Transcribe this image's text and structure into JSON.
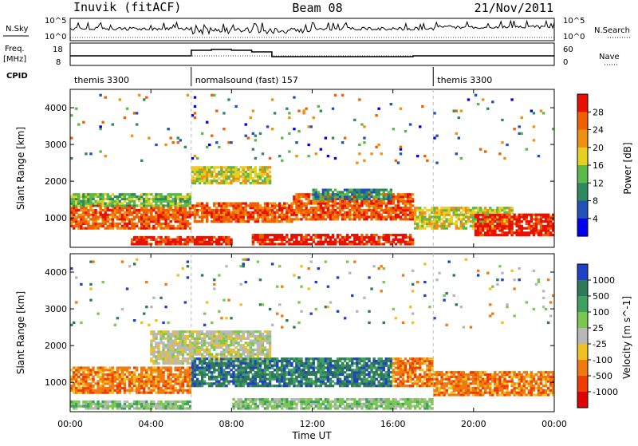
{
  "header": {
    "station": "Inuvik (fitACF)",
    "beam": "Beam 08",
    "date": "21/Nov/2011"
  },
  "left_labels": {
    "nsky": "N.Sky",
    "freq_line1": "Freq.",
    "freq_line2": "[MHz]",
    "cpid": "CPID"
  },
  "right_labels": {
    "nsearch": "N.Search",
    "nave": "Nave"
  },
  "nsky_panel": {
    "left_ticks": [
      "10^5",
      "10^0"
    ],
    "right_ticks": [
      "10^5",
      "10^0"
    ]
  },
  "freq_panel": {
    "left_ticks": [
      "18",
      "8"
    ],
    "right_ticks": [
      "60",
      "0"
    ]
  },
  "cpid_segments": [
    {
      "label": "themis 3300",
      "start_hour": 0,
      "end_hour": 6
    },
    {
      "label": "normalsound (fast) 157",
      "start_hour": 6,
      "end_hour": 18
    },
    {
      "label": "themis 3300",
      "start_hour": 18,
      "end_hour": 24
    }
  ],
  "chart_data": [
    {
      "type": "heatmap",
      "name": "power",
      "xlabel": "",
      "ylabel": "Slant Range [km]",
      "xlim": [
        0,
        24
      ],
      "ylim": [
        200,
        4500
      ],
      "yticks": [
        "1000",
        "2000",
        "3000",
        "4000"
      ],
      "colorbar_label": "Power [dB]",
      "colorbar_ticks": [
        "4",
        "8",
        "12",
        "16",
        "20",
        "24",
        "28"
      ],
      "colors": [
        "#0000f0",
        "#2050b8",
        "#2e8a5e",
        "#5bb84a",
        "#e8d020",
        "#f09010",
        "#f06000",
        "#e81000"
      ],
      "bands": [
        {
          "x0": 0,
          "x1": 6,
          "y0": 700,
          "y1": 1350,
          "level": 6
        },
        {
          "x0": 0,
          "x1": 6,
          "y0": 1300,
          "y1": 1650,
          "level": 3
        },
        {
          "x0": 3,
          "x1": 8,
          "y0": 250,
          "y1": 500,
          "level": 7
        },
        {
          "x0": 6,
          "x1": 11,
          "y0": 900,
          "y1": 1450,
          "level": 6
        },
        {
          "x0": 6,
          "x1": 10,
          "y0": 1950,
          "y1": 2400,
          "level": 4
        },
        {
          "x0": 11,
          "x1": 17,
          "y0": 950,
          "y1": 1700,
          "level": 6
        },
        {
          "x0": 12,
          "x1": 16,
          "y0": 1500,
          "y1": 1800,
          "level": 2
        },
        {
          "x0": 9,
          "x1": 17,
          "y0": 250,
          "y1": 550,
          "level": 7
        },
        {
          "x0": 17,
          "x1": 22,
          "y0": 700,
          "y1": 1300,
          "level": 4
        },
        {
          "x0": 20,
          "x1": 24,
          "y0": 500,
          "y1": 1100,
          "level": 7
        }
      ],
      "sparse_bands": [
        {
          "x0": 0,
          "x1": 24,
          "y0": 2500,
          "y1": 4400,
          "levels": [
            0,
            1,
            2,
            3,
            5,
            6
          ]
        }
      ]
    },
    {
      "type": "heatmap",
      "name": "velocity",
      "xlabel": "Time UT",
      "ylabel": "Slant Range [km]",
      "xlim": [
        0,
        24
      ],
      "ylim": [
        200,
        4500
      ],
      "xticks": [
        "00:00",
        "04:00",
        "08:00",
        "12:00",
        "16:00",
        "20:00",
        "00:00"
      ],
      "yticks": [
        "1000",
        "2000",
        "3000",
        "4000"
      ],
      "colorbar_label": "Velocity [m s^-1]",
      "colorbar_ticks": [
        "1000",
        "500",
        "100",
        "25",
        "-25",
        "-100",
        "-500",
        "-1000"
      ],
      "colors": [
        "#2040c8",
        "#2e7a58",
        "#3fa060",
        "#7ac850",
        "#b8b8b8",
        "#f0c020",
        "#f07a10",
        "#f03c00",
        "#e00000"
      ],
      "bands": [
        {
          "x0": 0,
          "x1": 6,
          "y0": 700,
          "y1": 1400,
          "level": 6
        },
        {
          "x0": 0,
          "x1": 6,
          "y0": 250,
          "y1": 500,
          "level": 3
        },
        {
          "x0": 4,
          "x1": 10,
          "y0": 1500,
          "y1": 2400,
          "level": 4
        },
        {
          "x0": 6,
          "x1": 16,
          "y0": 900,
          "y1": 1700,
          "level": 1
        },
        {
          "x0": 16,
          "x1": 18,
          "y0": 900,
          "y1": 1700,
          "level": 6
        },
        {
          "x0": 18,
          "x1": 24,
          "y0": 600,
          "y1": 1300,
          "level": 6
        },
        {
          "x0": 8,
          "x1": 18,
          "y0": 250,
          "y1": 550,
          "level": 3
        }
      ],
      "sparse_bands": [
        {
          "x0": 0,
          "x1": 24,
          "y0": 2500,
          "y1": 4400,
          "levels": [
            0,
            1,
            3,
            4,
            5,
            6
          ]
        }
      ]
    }
  ]
}
